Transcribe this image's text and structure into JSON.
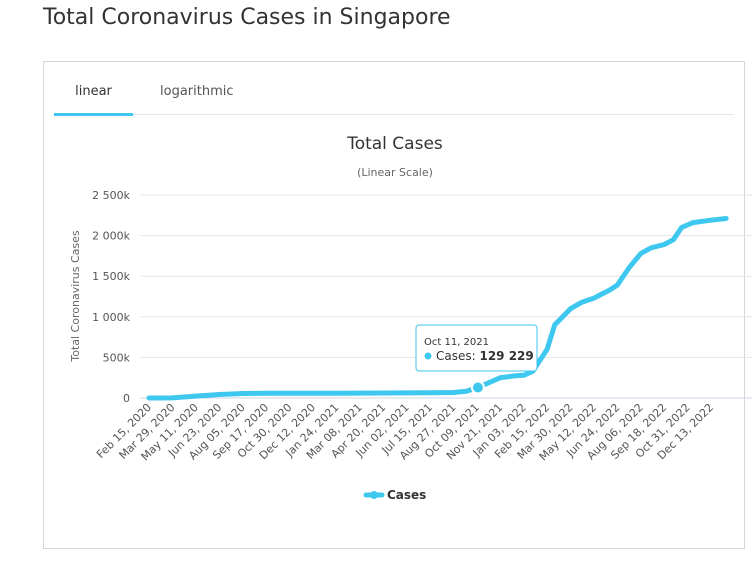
{
  "page": {
    "title": "Total Coronavirus Cases in Singapore"
  },
  "tabs": [
    {
      "label": "linear",
      "active": true
    },
    {
      "label": "logarithmic",
      "active": false
    }
  ],
  "colors": {
    "series": "#3ec7ef",
    "tooltip_border": "#3ec7ef",
    "grid": "#e6e6e6",
    "text": "#444444"
  },
  "tooltip": {
    "date": "Oct 11, 2021",
    "series_label": "Cases: ",
    "value_label": "129 229"
  },
  "chart_data": {
    "type": "line",
    "title": "Total Cases",
    "subtitle": "(Linear Scale)",
    "ylabel": "Total Coronavirus Cases",
    "xlabel": "",
    "ylim": [
      0,
      2500000
    ],
    "y_ticks": [
      0,
      500000,
      1000000,
      1500000,
      2000000,
      2500000
    ],
    "y_tick_labels": [
      "0",
      "500k",
      "1 000k",
      "1 500k",
      "2 000k",
      "2 500k"
    ],
    "x_tick_labels": [
      "Feb 15, 2020",
      "Mar 29, 2020",
      "May 11, 2020",
      "Jun 23, 2020",
      "Aug 05, 2020",
      "Sep 17, 2020",
      "Oct 30, 2020",
      "Dec 12, 2020",
      "Jan 24, 2021",
      "Mar 08, 2021",
      "Apr 20, 2021",
      "Jun 02, 2021",
      "Jul 15, 2021",
      "Aug 27, 2021",
      "Oct 09, 2021",
      "Nov 21, 2021",
      "Jan 03, 2022",
      "Feb 15, 2022",
      "Mar 30, 2022",
      "May 12, 2022",
      "Jun 24, 2022",
      "Aug 06, 2022",
      "Sep 18, 2022",
      "Oct 31, 2022",
      "Dec 13, 2022"
    ],
    "legend": "bottom-center",
    "grid": true,
    "series": [
      {
        "name": "Cases",
        "x": [
          "Feb 15, 2020",
          "Mar 29, 2020",
          "May 11, 2020",
          "Jun 23, 2020",
          "Aug 05, 2020",
          "Sep 17, 2020",
          "Oct 30, 2020",
          "Dec 12, 2020",
          "Jan 24, 2021",
          "Mar 08, 2021",
          "Apr 20, 2021",
          "Jun 02, 2021",
          "Jul 15, 2021",
          "Aug 27, 2021",
          "Sep 20, 2021",
          "Oct 11, 2021",
          "Nov 21, 2021",
          "Dec 20, 2021",
          "Jan 03, 2022",
          "Jan 20, 2022",
          "Feb 15, 2022",
          "Mar 01, 2022",
          "Mar 30, 2022",
          "Apr 20, 2022",
          "May 12, 2022",
          "Jun 10, 2022",
          "Jun 24, 2022",
          "Jul 15, 2022",
          "Aug 06, 2022",
          "Aug 25, 2022",
          "Sep 18, 2022",
          "Oct 05, 2022",
          "Oct 20, 2022",
          "Nov 10, 2022",
          "Dec 13, 2022",
          "Jan 10, 2023"
        ],
        "values": [
          60,
          900,
          23000,
          43000,
          55000,
          57600,
          58000,
          58300,
          59200,
          60100,
          61200,
          62200,
          64500,
          67800,
          82000,
          129229,
          250000,
          275000,
          280000,
          330000,
          600000,
          900000,
          1100000,
          1180000,
          1230000,
          1330000,
          1390000,
          1600000,
          1780000,
          1850000,
          1890000,
          1950000,
          2100000,
          2160000,
          2190000,
          2210000
        ]
      }
    ]
  }
}
